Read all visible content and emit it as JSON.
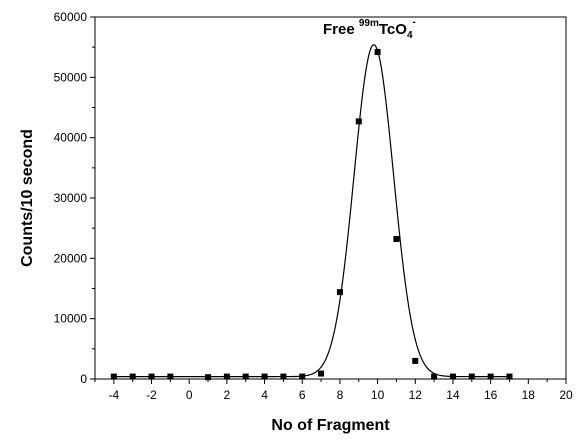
{
  "chart_data": {
    "type": "scatter",
    "xlabel": "No of Fragment",
    "ylabel": "Counts/10 second",
    "xlim": [
      -5,
      20
    ],
    "ylim": [
      0,
      60000
    ],
    "x_ticks": [
      -4,
      -2,
      0,
      2,
      4,
      6,
      8,
      10,
      12,
      14,
      16,
      18,
      20
    ],
    "y_ticks": [
      0,
      10000,
      20000,
      30000,
      40000,
      50000,
      60000
    ],
    "x_minor_step": 1,
    "y_minor_step": 5000,
    "grid": false,
    "annotation": {
      "prefix": "Free ",
      "superscript": "99m",
      "species": "TcO",
      "subscript": "4",
      "charge": "-"
    },
    "series": [
      {
        "marker": "square",
        "color": "#000000",
        "x": [
          -4,
          -3,
          -2,
          -1,
          1,
          2,
          3,
          4,
          5,
          6,
          7,
          8,
          9,
          10,
          11,
          12,
          13,
          14,
          15,
          16,
          17
        ],
        "y": [
          400,
          400,
          400,
          400,
          300,
          400,
          400,
          400,
          400,
          400,
          900,
          14400,
          42700,
          54200,
          23200,
          3000,
          400,
          400,
          400,
          400,
          400
        ]
      }
    ],
    "fit": {
      "type": "gaussian",
      "baseline": 400,
      "amplitude": 55000,
      "center": 9.8,
      "sigma": 1.05,
      "color": "#000000"
    }
  }
}
